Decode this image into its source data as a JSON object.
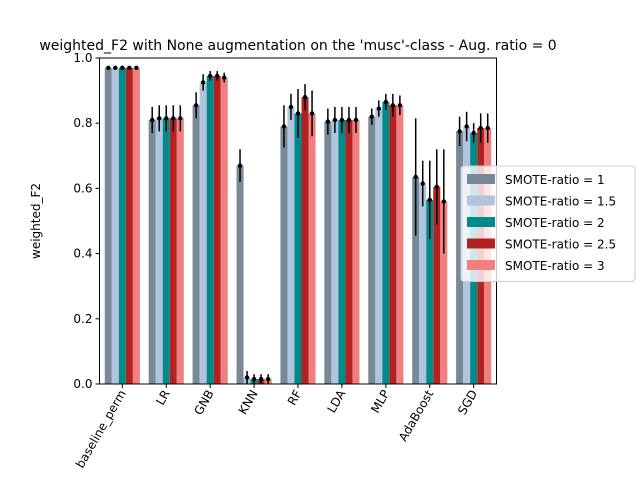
{
  "chart_data": {
    "type": "bar",
    "title": "weighted_F2 with None augmentation on the 'musc'-class - Aug. ratio = 0",
    "xlabel": "",
    "ylabel": "weighted_F2",
    "ylim": [
      0,
      1.0
    ],
    "yticks": [
      "0.0",
      "0.2",
      "0.4",
      "0.6",
      "0.8",
      "1.0"
    ],
    "ytick_values": [
      0.0,
      0.2,
      0.4,
      0.6,
      0.8,
      1.0
    ],
    "grid": false,
    "legend_placement": "right, outside plot",
    "categories": [
      "baseline_perm",
      "LR",
      "GNB",
      "KNN",
      "RF",
      "LDA",
      "MLP",
      "AdaBoost",
      "SGD"
    ],
    "series": [
      {
        "name": "SMOTE-ratio = 1",
        "color": "#778899",
        "values": [
          0.97,
          0.81,
          0.855,
          0.67,
          0.79,
          0.805,
          0.82,
          0.635,
          0.775
        ],
        "errors": [
          0.005,
          0.04,
          0.04,
          0.05,
          0.065,
          0.04,
          0.025,
          0.18,
          0.045
        ]
      },
      {
        "name": "SMOTE-ratio = 1.5",
        "color": "#b0c4de",
        "values": [
          0.97,
          0.815,
          0.925,
          0.02,
          0.85,
          0.81,
          0.845,
          0.615,
          0.79
        ],
        "errors": [
          0.005,
          0.04,
          0.025,
          0.02,
          0.04,
          0.04,
          0.025,
          0.07,
          0.045
        ]
      },
      {
        "name": "SMOTE-ratio = 2",
        "color": "#008b8b",
        "values": [
          0.97,
          0.815,
          0.945,
          0.015,
          0.83,
          0.81,
          0.865,
          0.565,
          0.77
        ],
        "errors": [
          0.005,
          0.04,
          0.015,
          0.015,
          0.075,
          0.04,
          0.025,
          0.12,
          0.03
        ]
      },
      {
        "name": "SMOTE-ratio = 2.5",
        "color": "#b22222",
        "values": [
          0.97,
          0.815,
          0.945,
          0.015,
          0.88,
          0.81,
          0.855,
          0.605,
          0.785
        ],
        "errors": [
          0.005,
          0.04,
          0.015,
          0.015,
          0.04,
          0.04,
          0.035,
          0.115,
          0.045
        ]
      },
      {
        "name": "SMOTE-ratio = 3",
        "color": "#f08080",
        "values": [
          0.97,
          0.815,
          0.94,
          0.015,
          0.83,
          0.81,
          0.855,
          0.56,
          0.785
        ],
        "errors": [
          0.005,
          0.04,
          0.015,
          0.015,
          0.07,
          0.04,
          0.03,
          0.16,
          0.045
        ]
      }
    ]
  }
}
